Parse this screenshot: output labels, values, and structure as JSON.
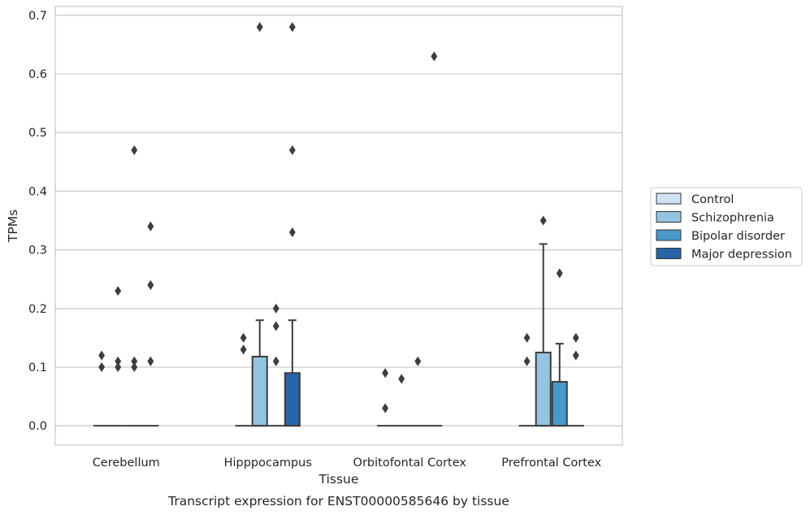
{
  "chart_data": {
    "type": "bar",
    "title": "",
    "caption": "Transcript expression for ENST00000585646 by tissue",
    "xlabel": "Tissue",
    "ylabel": "TPMs",
    "ylim": [
      -0.033,
      0.715
    ],
    "yticks": [
      0.0,
      0.1,
      0.2,
      0.3,
      0.4,
      0.5,
      0.6,
      0.7
    ],
    "ytick_labels": [
      "0.0",
      "0.1",
      "0.2",
      "0.3",
      "0.4",
      "0.5",
      "0.6",
      "0.7"
    ],
    "grid": "horizontal",
    "legend_position": "right",
    "categories": [
      "Cerebellum",
      "Hipppocampus",
      "Orbitofontal Cortex",
      "Prefrontal Cortex"
    ],
    "series": [
      {
        "name": "Control",
        "color": "#d0e1f2",
        "values": [
          0,
          0,
          0,
          0
        ],
        "whisker_top": [
          null,
          null,
          null,
          null
        ],
        "outliers": [
          [
            0.12,
            0.1
          ],
          [
            0.15,
            0.13
          ],
          [
            0.09,
            0.03
          ],
          [
            0.15,
            0.11
          ]
        ]
      },
      {
        "name": "Schizophrenia",
        "color": "#94c4df",
        "values": [
          0,
          0.118,
          0,
          0.125
        ],
        "whisker_top": [
          null,
          0.18,
          null,
          0.31
        ],
        "outliers": [
          [
            0.23,
            0.11,
            0.1
          ],
          [
            0.68
          ],
          [
            0.08
          ],
          [
            0.35
          ]
        ]
      },
      {
        "name": "Bipolar disorder",
        "color": "#4a98c9",
        "values": [
          0,
          0,
          0,
          0.075
        ],
        "whisker_top": [
          null,
          null,
          null,
          0.14
        ],
        "outliers": [
          [
            0.47,
            0.11,
            0.1
          ],
          [
            0.2,
            0.17,
            0.11
          ],
          [
            0.11
          ],
          [
            0.26
          ]
        ]
      },
      {
        "name": "Major depression",
        "color": "#2764a8",
        "values": [
          0,
          0.09,
          0,
          0
        ],
        "whisker_top": [
          null,
          0.18,
          null,
          null
        ],
        "outliers": [
          [
            0.34,
            0.24,
            0.11
          ],
          [
            0.68,
            0.47,
            0.33
          ],
          [
            0.63
          ],
          [
            0.15,
            0.12
          ]
        ]
      }
    ]
  }
}
